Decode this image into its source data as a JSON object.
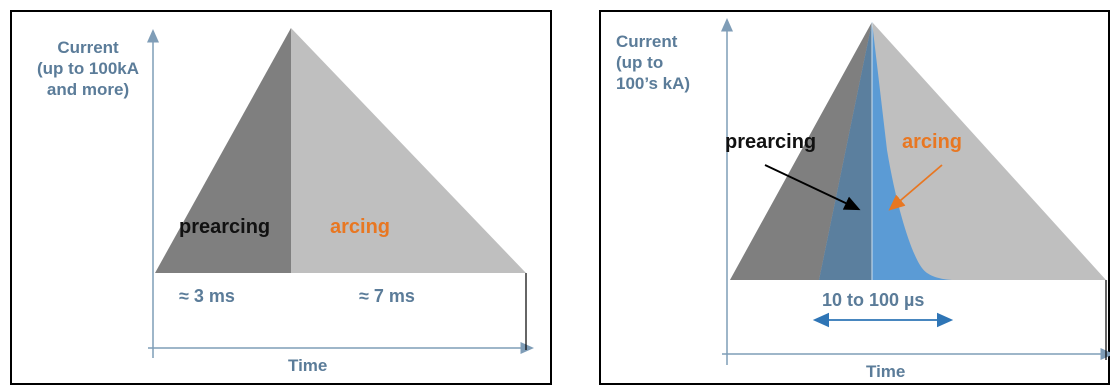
{
  "colors": {
    "axis": "#7f9db7",
    "label_blue": "#5b7c99",
    "dark_gray": "#7f7f7f",
    "light_gray": "#bfbfbf",
    "steel_blue": "#5b7f9e",
    "bright_blue": "#5b9bd5",
    "orange": "#e87722"
  },
  "left_panel": {
    "y_label_lines": [
      "Current",
      "(up to 100kA",
      "and more)"
    ],
    "x_label": "Time",
    "prearcing_label": "prearcing",
    "arcing_label": "arcing",
    "prearcing_duration": "≈ 3 ms",
    "arcing_duration": "≈ 7 ms"
  },
  "right_panel": {
    "y_label_lines": [
      "Current",
      "(up to",
      "100’s kA)"
    ],
    "x_label": "Time",
    "prearcing_label": "prearcing",
    "arcing_label": "arcing",
    "duration_range": "10 to 100 µs"
  }
}
